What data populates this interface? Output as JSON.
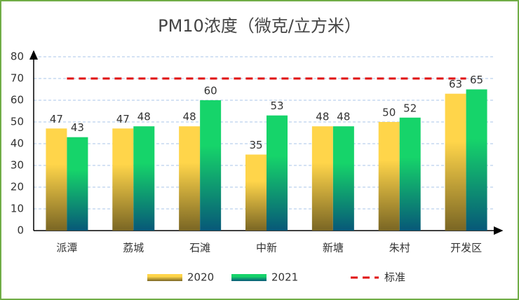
{
  "chart_data": {
    "type": "bar",
    "title": "PM10浓度（微克/立方米）",
    "categories": [
      "派潭",
      "荔城",
      "石滩",
      "中新",
      "新塘",
      "朱村",
      "开发区"
    ],
    "series": [
      {
        "name": "2020",
        "color": "#ffd54a",
        "values": [
          47,
          47,
          48,
          35,
          48,
          50,
          63
        ]
      },
      {
        "name": "2021",
        "color": "#16d46a",
        "values": [
          43,
          48,
          60,
          53,
          48,
          52,
          65
        ]
      },
      {
        "name": "标准",
        "type": "line",
        "color": "#e01010",
        "values": [
          70,
          70,
          70,
          70,
          70,
          70,
          70
        ]
      }
    ],
    "ylim": [
      0,
      80
    ],
    "yticks": [
      0,
      10,
      20,
      30,
      40,
      50,
      60,
      70,
      80
    ],
    "grid": true,
    "legend": "bottom"
  }
}
